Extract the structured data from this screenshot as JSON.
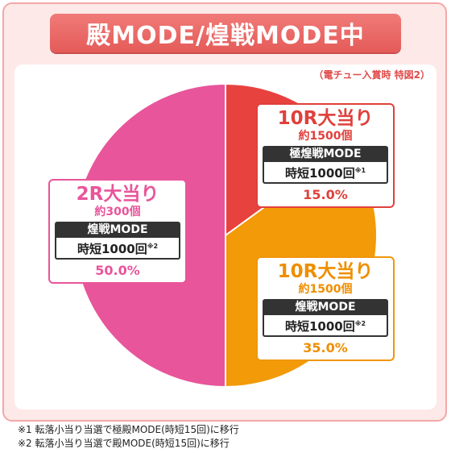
{
  "header": {
    "title": "殿MODE/煌戦MODE中"
  },
  "subnote": "（電チュー入賞時 特図2）",
  "chart_data": {
    "type": "pie",
    "start": "top, clockwise",
    "slices": [
      {
        "label": "10R大当り",
        "sub": "約1500個",
        "mode": "極煌戦MODE",
        "jitan": "時短1000回",
        "note": "※1",
        "percent_text": "15.0%",
        "value": 15.0,
        "color": "#e8423f"
      },
      {
        "label": "10R大当り",
        "sub": "約1500個",
        "mode": "煌戦MODE",
        "jitan": "時短1000回",
        "note": "※2",
        "percent_text": "35.0%",
        "value": 35.0,
        "color": "#f29a08"
      },
      {
        "label": "2R大当り",
        "sub": "約300個",
        "mode": "煌戦MODE",
        "jitan": "時短1000回",
        "note": "※2",
        "percent_text": "50.0%",
        "value": 50.0,
        "color": "#e8559a"
      }
    ]
  },
  "footnotes": [
    "※1 転落小当り当選で極殿MODE(時短15回)に移行",
    "※2 転落小当り当選で殿MODE(時短15回)に移行"
  ]
}
